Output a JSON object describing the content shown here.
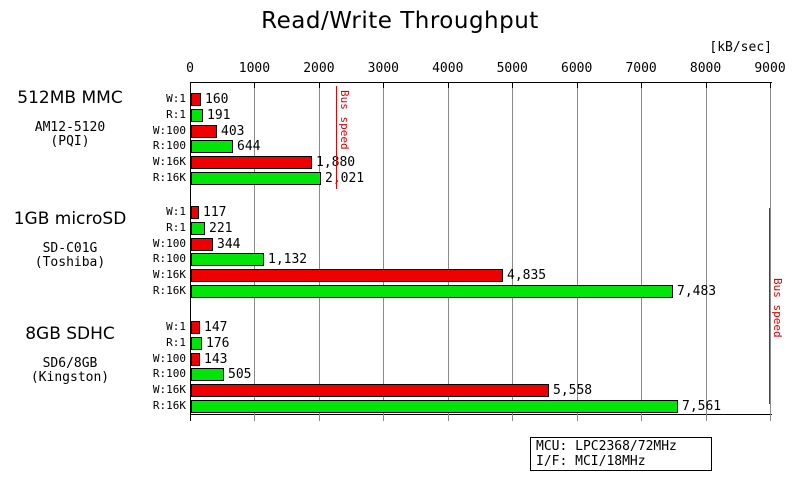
{
  "chart_data": {
    "type": "bar",
    "orientation": "horizontal",
    "title": "Read/Write Throughput",
    "unit": "[kB/sec]",
    "xlim": [
      0,
      9000
    ],
    "xticks": [
      0,
      1000,
      2000,
      3000,
      4000,
      5000,
      6000,
      7000,
      8000,
      9000
    ],
    "grid": true,
    "legend": "none",
    "colors": {
      "write_bar": "#ee0000",
      "read_bar": "#00e408",
      "bus_speed_line": "#e60000",
      "gridline": "#8a8a8a"
    },
    "groups": [
      {
        "title": "512MB MMC",
        "model": "AM12-5120",
        "maker": "(PQI)",
        "bars": [
          {
            "label": "W:1",
            "value": 160,
            "display": "160",
            "kind": "write"
          },
          {
            "label": "R:1",
            "value": 191,
            "display": "191",
            "kind": "read"
          },
          {
            "label": "W:100",
            "value": 403,
            "display": "403",
            "kind": "write"
          },
          {
            "label": "R:100",
            "value": 644,
            "display": "644",
            "kind": "read"
          },
          {
            "label": "W:16K",
            "value": 1880,
            "display": "1,880",
            "kind": "write"
          },
          {
            "label": "R:16K",
            "value": 2021,
            "display": "2,021",
            "kind": "read"
          }
        ]
      },
      {
        "title": "1GB microSD",
        "model": "SD-C01G",
        "maker": "(Toshiba)",
        "bars": [
          {
            "label": "W:1",
            "value": 117,
            "display": "117",
            "kind": "write"
          },
          {
            "label": "R:1",
            "value": 221,
            "display": "221",
            "kind": "read"
          },
          {
            "label": "W:100",
            "value": 344,
            "display": "344",
            "kind": "write"
          },
          {
            "label": "R:100",
            "value": 1132,
            "display": "1,132",
            "kind": "read"
          },
          {
            "label": "W:16K",
            "value": 4835,
            "display": "4,835",
            "kind": "write"
          },
          {
            "label": "R:16K",
            "value": 7483,
            "display": "7,483",
            "kind": "read"
          }
        ]
      },
      {
        "title": "8GB SDHC",
        "model": "SD6/8GB",
        "maker": "(Kingston)",
        "bars": [
          {
            "label": "W:1",
            "value": 147,
            "display": "147",
            "kind": "write"
          },
          {
            "label": "R:1",
            "value": 176,
            "display": "176",
            "kind": "read"
          },
          {
            "label": "W:100",
            "value": 143,
            "display": "143",
            "kind": "write"
          },
          {
            "label": "R:100",
            "value": 505,
            "display": "505",
            "kind": "read"
          },
          {
            "label": "W:16K",
            "value": 5558,
            "display": "5,558",
            "kind": "write"
          },
          {
            "label": "R:16K",
            "value": 7561,
            "display": "7,561",
            "kind": "read"
          }
        ]
      }
    ],
    "bus_speed_lines": [
      {
        "label": "Bus speed",
        "value": 2250,
        "group_start": 0,
        "group_end": 0,
        "label_pos": "top"
      },
      {
        "label": "Bus speed",
        "value": 9000,
        "group_start": 1,
        "group_end": 2,
        "label_pos": "middle"
      }
    ]
  },
  "info_box": {
    "rows": [
      "MCU: LPC2368/72MHz",
      "I/F: MCI/18MHz"
    ]
  }
}
